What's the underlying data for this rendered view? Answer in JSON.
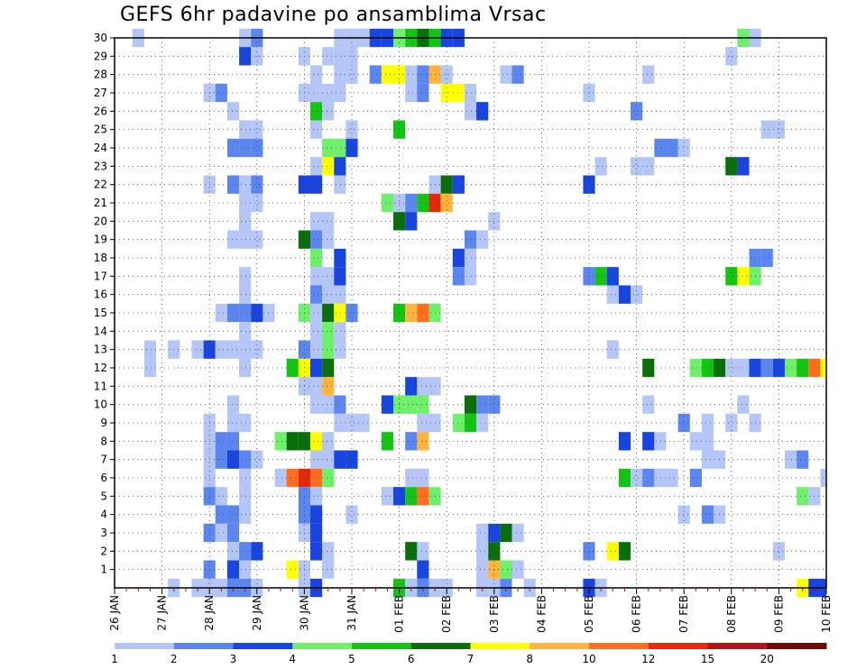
{
  "chart_data": {
    "type": "heatmap",
    "title": "GEFS 6hr padavine po ansamblima Vrsac",
    "xlabel": "",
    "ylabel": "",
    "x_tick_labels": [
      "26 JAN",
      "27 JAN",
      "28 JAN",
      "29 JAN",
      "30 JAN",
      "31 JAN",
      "01 FEB",
      "02 FEB",
      "03 FEB",
      "04 FEB",
      "05 FEB",
      "06 FEB",
      "07 FEB",
      "08 FEB",
      "09 FEB",
      "10 FEB"
    ],
    "y_tick_labels": [
      "1",
      "2",
      "3",
      "4",
      "5",
      "6",
      "7",
      "8",
      "9",
      "10",
      "11",
      "12",
      "13",
      "14",
      "15",
      "16",
      "17",
      "18",
      "19",
      "20",
      "21",
      "22",
      "23",
      "24",
      "25",
      "26",
      "27",
      "28",
      "29",
      "30"
    ],
    "x_unit": "6-hour step from 26 JAN 00Z (4 steps per day, 60 steps shown)",
    "y_unit": "ensemble member",
    "xlim": [
      0,
      60
    ],
    "ylim": [
      0,
      30
    ],
    "grid": true,
    "colorbar": {
      "position": "bottom",
      "levels": [
        1,
        2,
        3,
        4,
        5,
        6,
        7,
        8,
        10,
        12,
        15,
        20
      ],
      "labels": [
        "1",
        "2",
        "3",
        "4",
        "5",
        "6",
        "7",
        "8",
        "10",
        "12",
        "15",
        "20"
      ],
      "colors": [
        "#b3c6f7",
        "#5b86f0",
        "#1844e0",
        "#6ef06a",
        "#14c414",
        "#0a6e0a",
        "#ffff00",
        "#ffb43c",
        "#ff6e1e",
        "#e6280a",
        "#b41414",
        "#6e0a0a"
      ]
    },
    "cells": [
      [
        30,
        2,
        0
      ],
      [
        30,
        11,
        0
      ],
      [
        30,
        12,
        1
      ],
      [
        30,
        19,
        0
      ],
      [
        30,
        20,
        0
      ],
      [
        30,
        21,
        0
      ],
      [
        30,
        22,
        2
      ],
      [
        30,
        23,
        2
      ],
      [
        30,
        24,
        3
      ],
      [
        30,
        25,
        4
      ],
      [
        30,
        26,
        5
      ],
      [
        30,
        27,
        4
      ],
      [
        30,
        28,
        2
      ],
      [
        30,
        29,
        2
      ],
      [
        30,
        53,
        3
      ],
      [
        30,
        54,
        0
      ],
      [
        29,
        11,
        2
      ],
      [
        29,
        12,
        0
      ],
      [
        29,
        16,
        0
      ],
      [
        29,
        18,
        0
      ],
      [
        29,
        19,
        0
      ],
      [
        29,
        20,
        0
      ],
      [
        29,
        52,
        0
      ],
      [
        28,
        17,
        0
      ],
      [
        28,
        19,
        0
      ],
      [
        28,
        20,
        0
      ],
      [
        28,
        22,
        1
      ],
      [
        28,
        23,
        6
      ],
      [
        28,
        24,
        6
      ],
      [
        28,
        25,
        0
      ],
      [
        28,
        26,
        1
      ],
      [
        28,
        27,
        7
      ],
      [
        28,
        28,
        0
      ],
      [
        28,
        33,
        0
      ],
      [
        28,
        34,
        1
      ],
      [
        28,
        45,
        0
      ],
      [
        27,
        8,
        0
      ],
      [
        27,
        9,
        1
      ],
      [
        27,
        16,
        0
      ],
      [
        27,
        17,
        0
      ],
      [
        27,
        18,
        0
      ],
      [
        27,
        19,
        0
      ],
      [
        27,
        25,
        0
      ],
      [
        27,
        26,
        1
      ],
      [
        27,
        28,
        6
      ],
      [
        27,
        29,
        6
      ],
      [
        27,
        30,
        0
      ],
      [
        27,
        40,
        0
      ],
      [
        26,
        10,
        0
      ],
      [
        26,
        17,
        4
      ],
      [
        26,
        18,
        0
      ],
      [
        26,
        30,
        0
      ],
      [
        26,
        31,
        2
      ],
      [
        26,
        44,
        1
      ],
      [
        25,
        11,
        0
      ],
      [
        25,
        12,
        0
      ],
      [
        25,
        17,
        0
      ],
      [
        25,
        20,
        0
      ],
      [
        25,
        24,
        4
      ],
      [
        25,
        55,
        0
      ],
      [
        25,
        56,
        0
      ],
      [
        24,
        10,
        1
      ],
      [
        24,
        11,
        1
      ],
      [
        24,
        12,
        1
      ],
      [
        24,
        18,
        3
      ],
      [
        24,
        19,
        3
      ],
      [
        24,
        20,
        2
      ],
      [
        24,
        46,
        1
      ],
      [
        24,
        47,
        1
      ],
      [
        24,
        48,
        0
      ],
      [
        23,
        17,
        0
      ],
      [
        23,
        18,
        6
      ],
      [
        23,
        19,
        2
      ],
      [
        23,
        41,
        0
      ],
      [
        23,
        44,
        0
      ],
      [
        23,
        45,
        0
      ],
      [
        23,
        52,
        5
      ],
      [
        23,
        53,
        2
      ],
      [
        22,
        8,
        0
      ],
      [
        22,
        10,
        1
      ],
      [
        22,
        11,
        0
      ],
      [
        22,
        12,
        1
      ],
      [
        22,
        16,
        2
      ],
      [
        22,
        17,
        2
      ],
      [
        22,
        19,
        0
      ],
      [
        22,
        27,
        0
      ],
      [
        22,
        28,
        5
      ],
      [
        22,
        29,
        2
      ],
      [
        22,
        40,
        2
      ],
      [
        21,
        11,
        0
      ],
      [
        21,
        12,
        0
      ],
      [
        21,
        23,
        3
      ],
      [
        21,
        24,
        0
      ],
      [
        21,
        25,
        1
      ],
      [
        21,
        26,
        4
      ],
      [
        21,
        27,
        9
      ],
      [
        21,
        28,
        7
      ],
      [
        20,
        11,
        0
      ],
      [
        20,
        17,
        0
      ],
      [
        20,
        18,
        0
      ],
      [
        20,
        24,
        5
      ],
      [
        20,
        25,
        2
      ],
      [
        20,
        32,
        0
      ],
      [
        19,
        10,
        0
      ],
      [
        19,
        11,
        0
      ],
      [
        19,
        12,
        0
      ],
      [
        19,
        16,
        5
      ],
      [
        19,
        17,
        1
      ],
      [
        19,
        18,
        0
      ],
      [
        19,
        30,
        1
      ],
      [
        19,
        31,
        0
      ],
      [
        18,
        17,
        3
      ],
      [
        18,
        19,
        2
      ],
      [
        18,
        29,
        2
      ],
      [
        18,
        30,
        0
      ],
      [
        18,
        54,
        1
      ],
      [
        18,
        55,
        1
      ],
      [
        17,
        11,
        0
      ],
      [
        17,
        17,
        0
      ],
      [
        17,
        18,
        0
      ],
      [
        17,
        19,
        2
      ],
      [
        17,
        29,
        1
      ],
      [
        17,
        30,
        0
      ],
      [
        17,
        40,
        1
      ],
      [
        17,
        41,
        4
      ],
      [
        17,
        42,
        2
      ],
      [
        17,
        52,
        4
      ],
      [
        17,
        53,
        6
      ],
      [
        17,
        54,
        3
      ],
      [
        16,
        11,
        0
      ],
      [
        16,
        17,
        1
      ],
      [
        16,
        18,
        0
      ],
      [
        16,
        19,
        0
      ],
      [
        16,
        42,
        0
      ],
      [
        16,
        43,
        2
      ],
      [
        16,
        44,
        0
      ],
      [
        15,
        9,
        0
      ],
      [
        15,
        10,
        1
      ],
      [
        15,
        11,
        1
      ],
      [
        15,
        12,
        2
      ],
      [
        15,
        13,
        0
      ],
      [
        15,
        16,
        3
      ],
      [
        15,
        17,
        0
      ],
      [
        15,
        18,
        5
      ],
      [
        15,
        19,
        6
      ],
      [
        15,
        20,
        1
      ],
      [
        15,
        24,
        4
      ],
      [
        15,
        25,
        7
      ],
      [
        15,
        26,
        8
      ],
      [
        15,
        27,
        3
      ],
      [
        14,
        11,
        0
      ],
      [
        14,
        17,
        0
      ],
      [
        14,
        18,
        3
      ],
      [
        14,
        19,
        0
      ],
      [
        13,
        3,
        0
      ],
      [
        13,
        5,
        0
      ],
      [
        13,
        7,
        0
      ],
      [
        13,
        8,
        2
      ],
      [
        13,
        9,
        0
      ],
      [
        13,
        10,
        0
      ],
      [
        13,
        11,
        0
      ],
      [
        13,
        12,
        0
      ],
      [
        13,
        16,
        1
      ],
      [
        13,
        17,
        0
      ],
      [
        13,
        18,
        3
      ],
      [
        13,
        19,
        0
      ],
      [
        13,
        42,
        0
      ],
      [
        12,
        3,
        0
      ],
      [
        12,
        11,
        0
      ],
      [
        12,
        15,
        4
      ],
      [
        12,
        16,
        6
      ],
      [
        12,
        17,
        2
      ],
      [
        12,
        18,
        5
      ],
      [
        12,
        45,
        5
      ],
      [
        12,
        49,
        3
      ],
      [
        12,
        50,
        4
      ],
      [
        12,
        51,
        5
      ],
      [
        12,
        52,
        0
      ],
      [
        12,
        53,
        0
      ],
      [
        12,
        54,
        2
      ],
      [
        12,
        55,
        1
      ],
      [
        12,
        56,
        2
      ],
      [
        12,
        57,
        3
      ],
      [
        12,
        58,
        4
      ],
      [
        12,
        59,
        8
      ],
      [
        12,
        60,
        6
      ],
      [
        11,
        16,
        0
      ],
      [
        11,
        17,
        0
      ],
      [
        11,
        18,
        7
      ],
      [
        11,
        25,
        2
      ],
      [
        11,
        26,
        0
      ],
      [
        11,
        27,
        0
      ],
      [
        10,
        10,
        0
      ],
      [
        10,
        17,
        0
      ],
      [
        10,
        18,
        0
      ],
      [
        10,
        19,
        1
      ],
      [
        10,
        23,
        2
      ],
      [
        10,
        24,
        3
      ],
      [
        10,
        25,
        3
      ],
      [
        10,
        26,
        3
      ],
      [
        10,
        30,
        5
      ],
      [
        10,
        31,
        1
      ],
      [
        10,
        32,
        1
      ],
      [
        10,
        45,
        0
      ],
      [
        10,
        53,
        0
      ],
      [
        9,
        8,
        0
      ],
      [
        9,
        10,
        0
      ],
      [
        9,
        11,
        0
      ],
      [
        9,
        19,
        0
      ],
      [
        9,
        20,
        0
      ],
      [
        9,
        21,
        0
      ],
      [
        9,
        26,
        0
      ],
      [
        9,
        27,
        0
      ],
      [
        9,
        29,
        3
      ],
      [
        9,
        30,
        4
      ],
      [
        9,
        31,
        0
      ],
      [
        9,
        48,
        1
      ],
      [
        9,
        50,
        0
      ],
      [
        9,
        52,
        0
      ],
      [
        9,
        54,
        0
      ],
      [
        8,
        8,
        0
      ],
      [
        8,
        9,
        1
      ],
      [
        8,
        10,
        1
      ],
      [
        8,
        14,
        3
      ],
      [
        8,
        15,
        5
      ],
      [
        8,
        16,
        5
      ],
      [
        8,
        17,
        6
      ],
      [
        8,
        18,
        0
      ],
      [
        8,
        23,
        4
      ],
      [
        8,
        25,
        1
      ],
      [
        8,
        26,
        7
      ],
      [
        8,
        43,
        2
      ],
      [
        8,
        45,
        2
      ],
      [
        8,
        46,
        0
      ],
      [
        8,
        49,
        0
      ],
      [
        8,
        50,
        0
      ],
      [
        7,
        8,
        0
      ],
      [
        7,
        9,
        1
      ],
      [
        7,
        10,
        2
      ],
      [
        7,
        11,
        1
      ],
      [
        7,
        12,
        0
      ],
      [
        7,
        17,
        0
      ],
      [
        7,
        18,
        0
      ],
      [
        7,
        19,
        2
      ],
      [
        7,
        20,
        2
      ],
      [
        7,
        50,
        0
      ],
      [
        7,
        51,
        0
      ],
      [
        7,
        57,
        0
      ],
      [
        7,
        58,
        1
      ],
      [
        6,
        8,
        0
      ],
      [
        6,
        11,
        0
      ],
      [
        6,
        14,
        0
      ],
      [
        6,
        15,
        8
      ],
      [
        6,
        16,
        9
      ],
      [
        6,
        17,
        8
      ],
      [
        6,
        18,
        3
      ],
      [
        6,
        25,
        0
      ],
      [
        6,
        26,
        0
      ],
      [
        6,
        43,
        4
      ],
      [
        6,
        44,
        0
      ],
      [
        6,
        45,
        1
      ],
      [
        6,
        46,
        0
      ],
      [
        6,
        47,
        0
      ],
      [
        6,
        49,
        1
      ],
      [
        6,
        60,
        0
      ],
      [
        5,
        8,
        1
      ],
      [
        5,
        9,
        0
      ],
      [
        5,
        11,
        0
      ],
      [
        5,
        16,
        1
      ],
      [
        5,
        17,
        0
      ],
      [
        5,
        23,
        0
      ],
      [
        5,
        24,
        2
      ],
      [
        5,
        25,
        4
      ],
      [
        5,
        26,
        8
      ],
      [
        5,
        27,
        3
      ],
      [
        5,
        58,
        3
      ],
      [
        5,
        59,
        0
      ],
      [
        4,
        9,
        1
      ],
      [
        4,
        10,
        1
      ],
      [
        4,
        11,
        0
      ],
      [
        4,
        16,
        1
      ],
      [
        4,
        17,
        2
      ],
      [
        4,
        20,
        0
      ],
      [
        4,
        48,
        0
      ],
      [
        4,
        50,
        1
      ],
      [
        4,
        51,
        0
      ],
      [
        3,
        8,
        1
      ],
      [
        3,
        9,
        0
      ],
      [
        3,
        10,
        1
      ],
      [
        3,
        16,
        0
      ],
      [
        3,
        17,
        2
      ],
      [
        3,
        31,
        0
      ],
      [
        3,
        32,
        2
      ],
      [
        3,
        33,
        5
      ],
      [
        3,
        34,
        0
      ],
      [
        2,
        10,
        0
      ],
      [
        2,
        11,
        1
      ],
      [
        2,
        12,
        2
      ],
      [
        2,
        17,
        2
      ],
      [
        2,
        18,
        0
      ],
      [
        2,
        25,
        5
      ],
      [
        2,
        26,
        0
      ],
      [
        2,
        31,
        0
      ],
      [
        2,
        32,
        5
      ],
      [
        2,
        40,
        1
      ],
      [
        2,
        42,
        6
      ],
      [
        2,
        43,
        5
      ],
      [
        2,
        56,
        0
      ],
      [
        1,
        8,
        1
      ],
      [
        1,
        10,
        2
      ],
      [
        1,
        11,
        0
      ],
      [
        1,
        15,
        6
      ],
      [
        1,
        16,
        0
      ],
      [
        1,
        18,
        0
      ],
      [
        1,
        26,
        2
      ],
      [
        1,
        31,
        0
      ],
      [
        1,
        32,
        7
      ],
      [
        1,
        33,
        3
      ],
      [
        1,
        34,
        0
      ],
      [
        0,
        5,
        0
      ],
      [
        0,
        7,
        0
      ],
      [
        0,
        8,
        0
      ],
      [
        0,
        9,
        0
      ],
      [
        0,
        10,
        1
      ],
      [
        0,
        11,
        1
      ],
      [
        0,
        12,
        0
      ],
      [
        0,
        16,
        0
      ],
      [
        0,
        17,
        2
      ],
      [
        0,
        24,
        4
      ],
      [
        0,
        25,
        0
      ],
      [
        0,
        26,
        1
      ],
      [
        0,
        27,
        0
      ],
      [
        0,
        28,
        0
      ],
      [
        0,
        31,
        0
      ],
      [
        0,
        32,
        0
      ],
      [
        0,
        33,
        1
      ],
      [
        0,
        35,
        0
      ],
      [
        0,
        40,
        2
      ],
      [
        0,
        41,
        0
      ],
      [
        0,
        58,
        6
      ],
      [
        0,
        59,
        2
      ],
      [
        0,
        60,
        2
      ]
    ]
  }
}
